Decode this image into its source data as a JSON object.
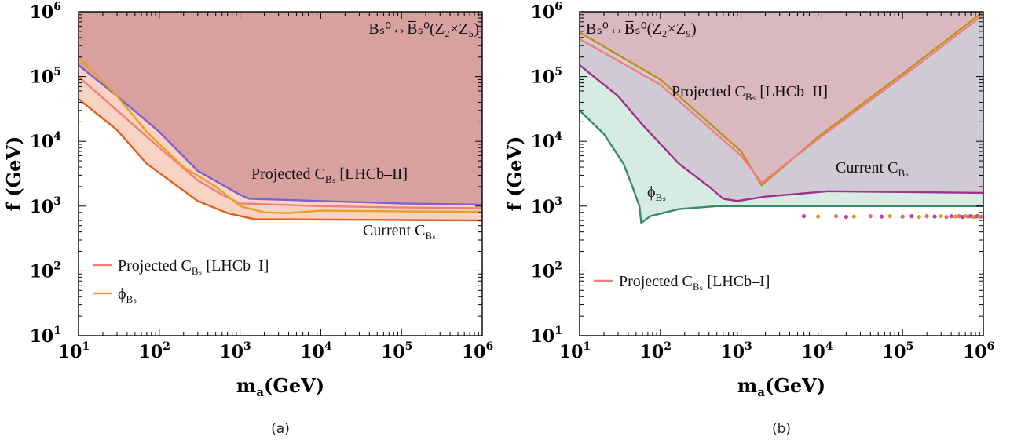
{
  "chart_data": [
    {
      "type": "area",
      "panel": "a",
      "caption": "(a)",
      "xscale": "log",
      "yscale": "log",
      "xlim": [
        10,
        1000000
      ],
      "ylim": [
        10,
        1000000
      ],
      "xlabel": "m",
      "xlabel_sub": "a",
      "xlabel_unit": "(GeV)",
      "ylabel": "f (GeV)",
      "xticks": [
        10,
        100,
        1000,
        10000,
        100000,
        1000000
      ],
      "yticks": [
        10,
        100,
        1000,
        10000,
        100000,
        1000000
      ],
      "tick_base": "10",
      "tick_exponents": [
        "1",
        "2",
        "3",
        "4",
        "5",
        "6"
      ],
      "title_text": "Bₛ⁰↔B̅ₛ⁰(Z₂×Z₅)",
      "labels": {
        "projected_ii": "Projected C",
        "projected_ii_sub": "Bₛ",
        "projected_ii_tail": "[LHCb–II]",
        "current": "Current C",
        "current_sub": "Bₛ"
      },
      "legend": [
        {
          "name": "Projected C",
          "sub": "Bₛ",
          "tail": "[LHCb–I]",
          "color": "#f08080"
        },
        {
          "name": "ϕ",
          "sub": "Bₛ",
          "tail": "",
          "color": "#e8a020"
        }
      ],
      "fill_top_color": "#d9a0a0",
      "fill_band_color": "#f8d3c3",
      "series": [
        {
          "name": "Projected C_Bs [LHCb-II]",
          "color": "#8060d0",
          "x": [
            10,
            30,
            100,
            300,
            1000,
            1300,
            10000,
            100000,
            1000000
          ],
          "y": [
            150000,
            50000,
            14000,
            3500,
            1500,
            1300,
            1200,
            1100,
            1050
          ]
        },
        {
          "name": "Projected C_Bs [LHCb-I]",
          "color": "#f08080",
          "x": [
            10,
            30,
            100,
            300,
            600,
            1000,
            10000,
            100000,
            1000000
          ],
          "y": [
            100000,
            30000,
            8000,
            2500,
            1500,
            1100,
            1000,
            950,
            930
          ]
        },
        {
          "name": "phi_Bs",
          "color": "#e8a020",
          "x": [
            10,
            30,
            70,
            200,
            500,
            1000,
            2000,
            4000,
            10000,
            100000,
            1000000
          ],
          "y": [
            200000,
            50000,
            14000,
            4000,
            2000,
            1000,
            800,
            780,
            850,
            830,
            820
          ]
        },
        {
          "name": "Current C_Bs",
          "color": "#e06020",
          "x": [
            10,
            30,
            70,
            300,
            700,
            1500,
            10000,
            100000,
            1000000
          ],
          "y": [
            45000,
            15000,
            4500,
            1200,
            780,
            630,
            620,
            610,
            600
          ]
        }
      ]
    },
    {
      "type": "area",
      "panel": "b",
      "caption": "(b)",
      "xscale": "log",
      "yscale": "log",
      "xlim": [
        10,
        1000000
      ],
      "ylim": [
        10,
        1000000
      ],
      "xlabel": "m",
      "xlabel_sub": "a",
      "xlabel_unit": "(GeV)",
      "ylabel": "f (GeV)",
      "xticks": [
        10,
        100,
        1000,
        10000,
        100000,
        1000000
      ],
      "yticks": [
        10,
        100,
        1000,
        10000,
        100000,
        1000000
      ],
      "tick_base": "10",
      "tick_exponents": [
        "1",
        "2",
        "3",
        "4",
        "5",
        "6"
      ],
      "title_text": "Bₛ⁰↔B̅ₛ⁰(Z₂×Z₉)",
      "labels": {
        "projected_ii": "Projected C",
        "projected_ii_sub": "Bₛ",
        "projected_ii_tail": "[LHCb–II]",
        "current": "Current C",
        "current_sub": "Bₛ",
        "phi": "ϕ",
        "phi_sub": "Bₛ"
      },
      "legend": [
        {
          "name": "Projected C",
          "sub": "Bₛ",
          "tail": "[LHCb–I]",
          "color": "#f08080"
        }
      ],
      "fill_top_color": "#d9b8c0",
      "fill_mid_color": "#cfcad3",
      "fill_green_color": "#d6ebe2",
      "series": [
        {
          "name": "Projected C_Bs [LHCb-II]",
          "color": "#c0901a",
          "x": [
            10,
            100,
            1000,
            1800,
            10000,
            100000,
            1000000
          ],
          "y": [
            480000,
            90000,
            7000,
            2100,
            13000,
            110000,
            1000000
          ]
        },
        {
          "name": "Projected C_Bs [LHCb-I]",
          "color": "#f08080",
          "x": [
            10,
            100,
            1000,
            1800,
            10000,
            100000,
            1000000
          ],
          "y": [
            380000,
            75000,
            6000,
            2300,
            12000,
            100000,
            900000
          ]
        },
        {
          "name": "Current C_Bs",
          "color": "#a0308a",
          "x": [
            10,
            30,
            60,
            170,
            400,
            600,
            900,
            2000,
            12000,
            100000,
            1000000
          ],
          "y": [
            150000,
            50000,
            18000,
            4500,
            2000,
            1300,
            1200,
            1400,
            1700,
            1650,
            1600
          ]
        },
        {
          "name": "phi_Bs",
          "color": "#3a8a6a",
          "x": [
            10,
            20,
            35,
            45,
            55,
            58,
            75,
            170,
            500,
            1000,
            10000,
            100000,
            1000000
          ],
          "y": [
            30000,
            13000,
            4500,
            2000,
            1000,
            550,
            700,
            900,
            1000,
            1000,
            1000,
            1000,
            1000
          ]
        }
      ],
      "scatter": {
        "colors": [
          "#c040a0",
          "#d4a030",
          "#e07070"
        ],
        "points": [
          [
            6000,
            700
          ],
          [
            9000,
            690
          ],
          [
            15000,
            700
          ],
          [
            20000,
            680
          ],
          [
            25000,
            690
          ],
          [
            40000,
            700
          ],
          [
            55000,
            690
          ],
          [
            70000,
            700
          ],
          [
            100000,
            690
          ],
          [
            130000,
            700
          ],
          [
            160000,
            680
          ],
          [
            200000,
            700
          ],
          [
            250000,
            690
          ],
          [
            300000,
            700
          ],
          [
            350000,
            680
          ],
          [
            400000,
            700
          ],
          [
            450000,
            690
          ],
          [
            500000,
            700
          ],
          [
            550000,
            680
          ],
          [
            600000,
            700
          ],
          [
            650000,
            690
          ],
          [
            700000,
            700
          ],
          [
            750000,
            680
          ],
          [
            800000,
            690
          ],
          [
            850000,
            700
          ],
          [
            900000,
            680
          ],
          [
            950000,
            690
          ]
        ]
      }
    }
  ]
}
